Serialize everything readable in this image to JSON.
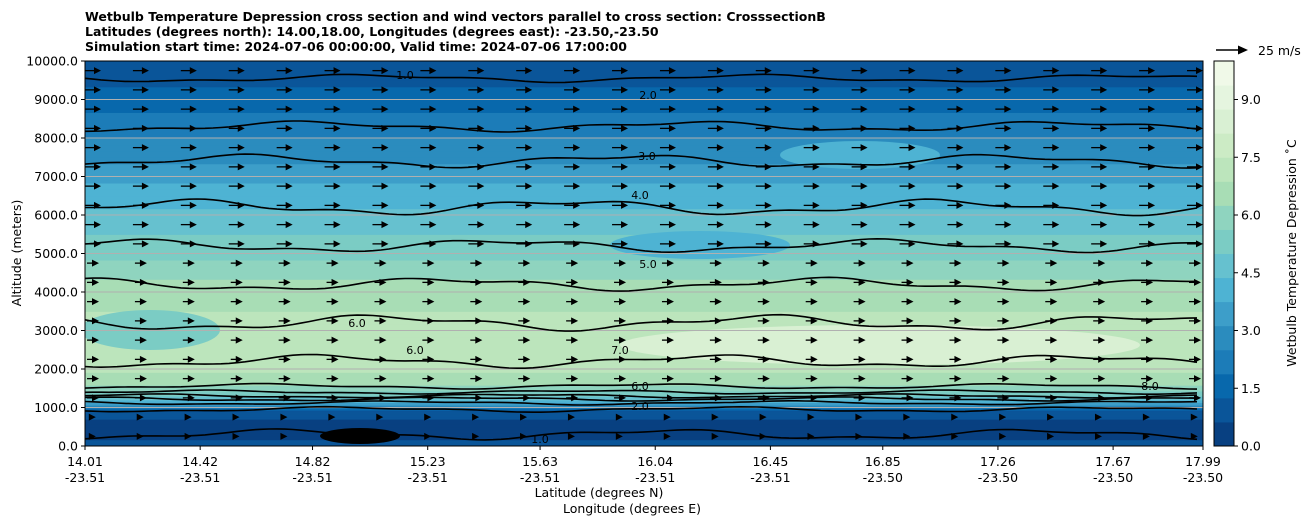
{
  "chart_data": {
    "type": "heatmap",
    "title_lines": [
      "Wetbulb Temperature Depression cross section and wind vectors parallel to cross section: CrosssectionB",
      "Latitudes (degrees north): 14.00,18.00, Longitudes (degrees east): -23.50,-23.50",
      "Simulation start time: 2024-07-06 00:00:00, Valid time: 2024-07-06 17:00:00"
    ],
    "ylabel": "Altitude (meters)",
    "xlabel_lat": "Latitude (degrees N)",
    "xlabel_lon": "Longitude (degrees E)",
    "ylim": [
      0,
      10000
    ],
    "y_ticks": [
      "0.0",
      "1000.0",
      "2000.0",
      "3000.0",
      "4000.0",
      "5000.0",
      "6000.0",
      "7000.0",
      "8000.0",
      "9000.0",
      "10000.0"
    ],
    "x_ticks": [
      {
        "lat": "14.01",
        "lon": "-23.51"
      },
      {
        "lat": "14.42",
        "lon": "-23.51"
      },
      {
        "lat": "14.82",
        "lon": "-23.51"
      },
      {
        "lat": "15.23",
        "lon": "-23.51"
      },
      {
        "lat": "15.63",
        "lon": "-23.51"
      },
      {
        "lat": "16.04",
        "lon": "-23.51"
      },
      {
        "lat": "16.45",
        "lon": "-23.51"
      },
      {
        "lat": "16.85",
        "lon": "-23.50"
      },
      {
        "lat": "17.26",
        "lon": "-23.50"
      },
      {
        "lat": "17.67",
        "lon": "-23.50"
      },
      {
        "lat": "17.99",
        "lon": "-23.50"
      }
    ],
    "grid": "horizontal",
    "colorbar": {
      "label": "Wetbulb Temperature Depression ˚C",
      "range": [
        0,
        10
      ],
      "ticks": [
        "0.0",
        "1.5",
        "3.0",
        "4.5",
        "6.0",
        "7.5",
        "9.0"
      ],
      "colors": [
        "#084081",
        "#0a5599",
        "#0868ac",
        "#1c7cb8",
        "#2b8cbe",
        "#3d9ec9",
        "#4eb3d3",
        "#66c1cf",
        "#7bccc4",
        "#8fd4bf",
        "#a8ddb5",
        "#bce5bc",
        "#ccebc5",
        "#d9f0d3",
        "#e5f5df",
        "#f0f9e8"
      ]
    },
    "wind_reference": {
      "label": "25 m/s"
    },
    "contour_labels": [
      "1.0",
      "2.0",
      "3.0",
      "4.0",
      "5.0",
      "6.0",
      "7.0",
      "8.0"
    ],
    "profile": [
      {
        "alt": 0,
        "value": 0.7
      },
      {
        "alt": 500,
        "value": 0.4
      },
      {
        "alt": 900,
        "value": 0.9
      },
      {
        "alt": 1000,
        "value": 2.0
      },
      {
        "alt": 1100,
        "value": 3.5
      },
      {
        "alt": 1300,
        "value": 5.0
      },
      {
        "alt": 1500,
        "value": 6.0
      },
      {
        "alt": 2000,
        "value": 7.0
      },
      {
        "alt": 3000,
        "value": 7.2
      },
      {
        "alt": 4000,
        "value": 6.5
      },
      {
        "alt": 5000,
        "value": 5.5
      },
      {
        "alt": 6000,
        "value": 4.5
      },
      {
        "alt": 7000,
        "value": 3.5
      },
      {
        "alt": 8000,
        "value": 2.5
      },
      {
        "alt": 9000,
        "value": 1.5
      },
      {
        "alt": 10000,
        "value": 0.8
      }
    ]
  }
}
